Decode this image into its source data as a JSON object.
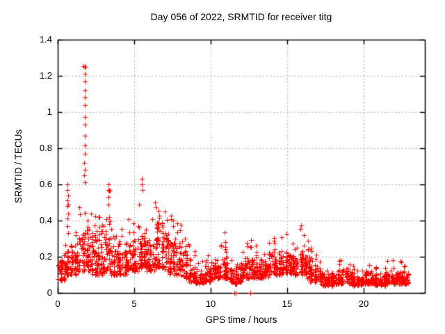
{
  "accent_color": "#ff0000",
  "chart_data": {
    "type": "scatter",
    "title": "Day 056 of 2022, SRMTID for receiver titg",
    "xlabel": "GPS time / hours",
    "ylabel": "SRMTID / TECUs",
    "xlim": [
      0,
      24
    ],
    "ylim": [
      0,
      1.4
    ],
    "xticks": [
      0,
      5,
      10,
      15,
      20
    ],
    "xtick_labels": [
      "0",
      "5",
      "10",
      "15",
      "20"
    ],
    "yticks": [
      0,
      0.2,
      0.4,
      0.6,
      0.8,
      1.0,
      1.2,
      1.4
    ],
    "ytick_labels": [
      "0",
      "0.2",
      "0.4",
      "0.6",
      "0.8",
      "1",
      "1.2",
      "1.4"
    ],
    "grid": true,
    "grid_style": "dashed",
    "grid_color": "#a8a8a8",
    "marker": "plus",
    "marker_color": "#ff0000",
    "legend": "none",
    "seed": 2022056,
    "bin_width_hours": 0.25,
    "bins_format": [
      "start_hour",
      "n_points",
      "min",
      "band_max",
      "column_max"
    ],
    "bins": [
      [
        0.0,
        24,
        0.07,
        0.2,
        0.24
      ],
      [
        0.25,
        24,
        0.07,
        0.22,
        0.28
      ],
      [
        0.5,
        26,
        0.1,
        0.3,
        0.6
      ],
      [
        0.75,
        24,
        0.1,
        0.3,
        0.42
      ],
      [
        1.0,
        24,
        0.1,
        0.28,
        0.36
      ],
      [
        1.25,
        24,
        0.12,
        0.35,
        0.5
      ],
      [
        1.5,
        26,
        0.12,
        0.4,
        0.55
      ],
      [
        1.75,
        30,
        0.15,
        0.5,
        0.58
      ],
      [
        2.0,
        28,
        0.12,
        0.45,
        0.6
      ],
      [
        2.25,
        26,
        0.1,
        0.4,
        0.46
      ],
      [
        2.5,
        26,
        0.1,
        0.38,
        0.44
      ],
      [
        2.75,
        26,
        0.1,
        0.35,
        0.42
      ],
      [
        3.0,
        26,
        0.12,
        0.4,
        0.48
      ],
      [
        3.25,
        26,
        0.12,
        0.42,
        0.6
      ],
      [
        3.5,
        24,
        0.1,
        0.34,
        0.4
      ],
      [
        3.75,
        24,
        0.1,
        0.3,
        0.36
      ],
      [
        4.0,
        24,
        0.1,
        0.32,
        0.4
      ],
      [
        4.25,
        24,
        0.1,
        0.3,
        0.38
      ],
      [
        4.5,
        24,
        0.12,
        0.34,
        0.44
      ],
      [
        4.75,
        24,
        0.12,
        0.36,
        0.44
      ],
      [
        5.0,
        24,
        0.12,
        0.35,
        0.42
      ],
      [
        5.25,
        26,
        0.14,
        0.44,
        0.56
      ],
      [
        5.5,
        26,
        0.15,
        0.5,
        0.63
      ],
      [
        5.75,
        24,
        0.12,
        0.4,
        0.6
      ],
      [
        6.0,
        24,
        0.12,
        0.35,
        0.45
      ],
      [
        6.25,
        26,
        0.12,
        0.42,
        0.55
      ],
      [
        6.5,
        26,
        0.14,
        0.45,
        0.52
      ],
      [
        6.75,
        26,
        0.14,
        0.44,
        0.5
      ],
      [
        7.0,
        26,
        0.12,
        0.4,
        0.48
      ],
      [
        7.25,
        24,
        0.1,
        0.38,
        0.48
      ],
      [
        7.5,
        26,
        0.1,
        0.4,
        0.5
      ],
      [
        7.75,
        24,
        0.1,
        0.34,
        0.45
      ],
      [
        8.0,
        24,
        0.08,
        0.3,
        0.4
      ],
      [
        8.25,
        22,
        0.08,
        0.25,
        0.32
      ],
      [
        8.5,
        22,
        0.06,
        0.2,
        0.3
      ],
      [
        8.75,
        22,
        0.06,
        0.18,
        0.25
      ],
      [
        9.0,
        22,
        0.05,
        0.16,
        0.22
      ],
      [
        9.25,
        22,
        0.05,
        0.16,
        0.2
      ],
      [
        9.5,
        22,
        0.06,
        0.17,
        0.22
      ],
      [
        9.75,
        22,
        0.06,
        0.18,
        0.25
      ],
      [
        10.0,
        22,
        0.07,
        0.19,
        0.27
      ],
      [
        10.25,
        22,
        0.08,
        0.2,
        0.25
      ],
      [
        10.5,
        22,
        0.08,
        0.21,
        0.28
      ],
      [
        10.75,
        24,
        0.08,
        0.22,
        0.36
      ],
      [
        11.0,
        24,
        0.08,
        0.22,
        0.3
      ],
      [
        11.25,
        22,
        0.06,
        0.19,
        0.25
      ],
      [
        11.5,
        22,
        0.05,
        0.18,
        0.24
      ],
      [
        11.75,
        22,
        0.06,
        0.19,
        0.26
      ],
      [
        12.0,
        22,
        0.08,
        0.21,
        0.27
      ],
      [
        12.25,
        22,
        0.08,
        0.21,
        0.3
      ],
      [
        12.5,
        24,
        0.08,
        0.23,
        0.34
      ],
      [
        12.75,
        22,
        0.08,
        0.21,
        0.28
      ],
      [
        13.0,
        22,
        0.08,
        0.21,
        0.3
      ],
      [
        13.25,
        22,
        0.08,
        0.2,
        0.26
      ],
      [
        13.5,
        22,
        0.09,
        0.21,
        0.27
      ],
      [
        13.75,
        22,
        0.1,
        0.23,
        0.29
      ],
      [
        14.0,
        24,
        0.1,
        0.24,
        0.31
      ],
      [
        14.25,
        24,
        0.1,
        0.23,
        0.29
      ],
      [
        14.5,
        24,
        0.1,
        0.24,
        0.31
      ],
      [
        14.75,
        24,
        0.11,
        0.26,
        0.37
      ],
      [
        15.0,
        24,
        0.11,
        0.27,
        0.37
      ],
      [
        15.25,
        24,
        0.1,
        0.25,
        0.31
      ],
      [
        15.5,
        24,
        0.1,
        0.27,
        0.34
      ],
      [
        15.75,
        26,
        0.11,
        0.29,
        0.4
      ],
      [
        16.0,
        26,
        0.1,
        0.28,
        0.38
      ],
      [
        16.25,
        24,
        0.08,
        0.24,
        0.32
      ],
      [
        16.5,
        22,
        0.06,
        0.18,
        0.26
      ],
      [
        16.75,
        22,
        0.06,
        0.16,
        0.22
      ],
      [
        17.0,
        22,
        0.05,
        0.14,
        0.18
      ],
      [
        17.25,
        22,
        0.04,
        0.12,
        0.15
      ],
      [
        17.5,
        22,
        0.04,
        0.11,
        0.14
      ],
      [
        17.75,
        22,
        0.04,
        0.12,
        0.15
      ],
      [
        18.0,
        22,
        0.05,
        0.13,
        0.17
      ],
      [
        18.25,
        24,
        0.05,
        0.14,
        0.18
      ],
      [
        18.5,
        22,
        0.05,
        0.14,
        0.2
      ],
      [
        18.75,
        22,
        0.06,
        0.15,
        0.21
      ],
      [
        19.0,
        22,
        0.05,
        0.14,
        0.18
      ],
      [
        19.25,
        22,
        0.04,
        0.12,
        0.15
      ],
      [
        19.5,
        22,
        0.04,
        0.11,
        0.14
      ],
      [
        19.75,
        22,
        0.04,
        0.12,
        0.15
      ],
      [
        20.0,
        24,
        0.05,
        0.14,
        0.21
      ],
      [
        20.25,
        24,
        0.05,
        0.14,
        0.2
      ],
      [
        20.5,
        22,
        0.05,
        0.13,
        0.18
      ],
      [
        20.75,
        22,
        0.04,
        0.12,
        0.16
      ],
      [
        21.0,
        22,
        0.04,
        0.12,
        0.15
      ],
      [
        21.25,
        22,
        0.04,
        0.12,
        0.16
      ],
      [
        21.5,
        22,
        0.05,
        0.13,
        0.19
      ],
      [
        21.75,
        22,
        0.05,
        0.14,
        0.21
      ],
      [
        22.0,
        24,
        0.05,
        0.14,
        0.2
      ],
      [
        22.25,
        24,
        0.05,
        0.13,
        0.18
      ],
      [
        22.5,
        26,
        0.05,
        0.12,
        0.16
      ],
      [
        22.75,
        18,
        0.05,
        0.12,
        0.15
      ]
    ],
    "outlier_points": [
      [
        1.7,
        1.255
      ],
      [
        1.77,
        1.25
      ],
      [
        1.84,
        1.25
      ],
      [
        1.77,
        1.21
      ],
      [
        1.79,
        1.17
      ],
      [
        1.77,
        1.12
      ],
      [
        1.77,
        1.08
      ],
      [
        1.78,
        1.04
      ],
      [
        1.76,
        0.975
      ],
      [
        1.78,
        0.93
      ],
      [
        1.77,
        0.87
      ],
      [
        1.78,
        0.815
      ],
      [
        1.76,
        0.77
      ],
      [
        1.74,
        0.72
      ],
      [
        1.77,
        0.68
      ],
      [
        1.74,
        0.65
      ],
      [
        1.77,
        0.61
      ],
      [
        0.65,
        0.6
      ],
      [
        0.65,
        0.57
      ],
      [
        0.66,
        0.54
      ],
      [
        0.64,
        0.51
      ],
      [
        0.65,
        0.48
      ],
      [
        0.66,
        0.44
      ],
      [
        0.64,
        0.41
      ],
      [
        0.65,
        0.37
      ],
      [
        0.66,
        0.33
      ],
      [
        3.32,
        0.6
      ],
      [
        3.3,
        0.57
      ],
      [
        3.32,
        0.53
      ],
      [
        3.31,
        0.49
      ],
      [
        5.52,
        0.63
      ],
      [
        5.5,
        0.6
      ],
      [
        5.53,
        0.57
      ],
      [
        11.55,
        0.0
      ],
      [
        11.63,
        0.0
      ],
      [
        12.58,
        0.0
      ]
    ]
  }
}
